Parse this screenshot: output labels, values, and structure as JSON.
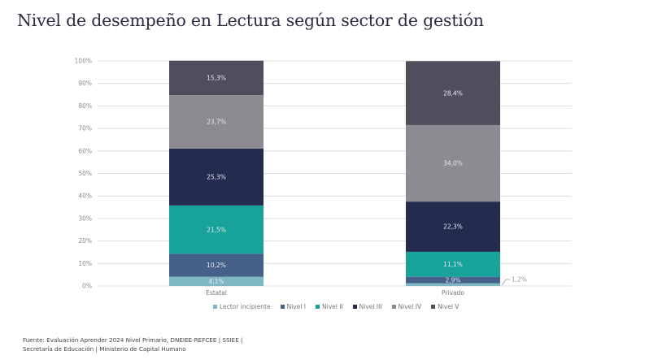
{
  "chart_data": {
    "type": "bar",
    "stacked": true,
    "title": "Nivel de desempeño en Lectura según sector de gestión",
    "xlabel": "",
    "ylabel": "",
    "ylim": [
      0,
      100
    ],
    "y_ticks": [
      "0%",
      "10%",
      "20%",
      "30%",
      "40%",
      "50%",
      "60%",
      "70%",
      "80%",
      "90%",
      "100%"
    ],
    "grid": true,
    "legend_position": "bottom",
    "categories": [
      "Estatal",
      "Privado"
    ],
    "series": [
      {
        "name": "Lector incipiente",
        "color": "#7fb8c4",
        "values": [
          4.1,
          1.2
        ],
        "labels": [
          "4,1%",
          "1,2%"
        ]
      },
      {
        "name": "Nivel I",
        "color": "#456189",
        "values": [
          10.2,
          2.9
        ],
        "labels": [
          "10,2%",
          "2,9%"
        ]
      },
      {
        "name": "Nivel II",
        "color": "#17a39a",
        "values": [
          21.5,
          11.1
        ],
        "labels": [
          "21,5%",
          "11,1%"
        ]
      },
      {
        "name": "Nivel III",
        "color": "#232b4f",
        "values": [
          25.3,
          22.3
        ],
        "labels": [
          "25,3%",
          "22,3%"
        ]
      },
      {
        "name": "Nivel IV",
        "color": "#8c8b91",
        "values": [
          23.7,
          34.0
        ],
        "labels": [
          "23,7%",
          "34,0%"
        ]
      },
      {
        "name": "Nivel V",
        "color": "#4f4e5c",
        "values": [
          15.3,
          28.4
        ],
        "labels": [
          "15,3%",
          "28,4%"
        ]
      }
    ]
  },
  "footer": {
    "source_line1": "Fuente: Evaluación Aprender 2024 Nivel Primario, DNEIEE-REFCEE | SSIEE |",
    "source_line2": "Secretaría de Educación | Ministerio de Capital Humano"
  }
}
